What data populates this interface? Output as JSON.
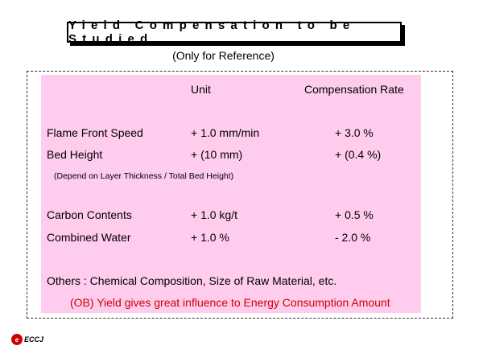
{
  "title": "Yield Compensation to be Studied",
  "subtitle": "(Only for Reference)",
  "headers": {
    "unit": "Unit",
    "rate": "Compensation Rate"
  },
  "rows": [
    {
      "label": "Flame Front Speed",
      "unit": "+ 1.0 mm/min",
      "rate": "+ 3.0 %"
    },
    {
      "label": "Bed Height",
      "unit": "+  (10 mm)",
      "rate": "+ (0.4 %)"
    },
    {
      "label": "Carbon Contents",
      "unit": "+ 1.0 kg/t",
      "rate": "+ 0.5 %"
    },
    {
      "label": "Combined Water",
      "unit": "+ 1.0 %",
      "rate": "- 2.0 %"
    }
  ],
  "bed_height_note": "(Depend on Layer Thickness / Total Bed Height)",
  "others": "Others  : Chemical Composition, Size of Raw Material, etc.",
  "conclusion": "(OB) Yield gives great influence to Energy Consumption Amount",
  "conclusion_color": "#cc0000",
  "panel_color": "#ffccee",
  "logo": {
    "text": "ECCJ",
    "icon": "eccj-logo-icon"
  }
}
